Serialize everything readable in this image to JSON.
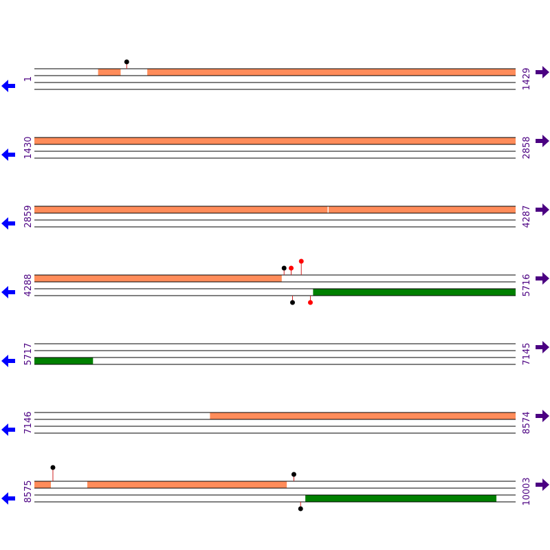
{
  "colors": {
    "line": "#000000",
    "orange_feature": "#ff8c5a",
    "green_feature": "#008000",
    "label": "#4b0082",
    "left_arrow": "#0000ff",
    "right_arrow": "#4b0082",
    "lollipop_black": "#000000",
    "lollipop_red": "#ff0000",
    "stem": "#d02020"
  },
  "icons": {
    "left": "arrow-left-icon",
    "right": "arrow-right-icon"
  },
  "rows": [
    {
      "start_label": "1",
      "end_label": "1429",
      "start": 1,
      "end": 1429,
      "features": [
        {
          "track": 0,
          "from": 190,
          "to": 257,
          "color": "orange"
        },
        {
          "track": 0,
          "from": 336,
          "to": 1429,
          "color": "orange"
        }
      ],
      "markers": [
        {
          "pos": 275,
          "side": "top",
          "level": 1,
          "color": "black"
        }
      ]
    },
    {
      "start_label": "1430",
      "end_label": "2858",
      "start": 1430,
      "end": 2858,
      "features": [
        {
          "track": 0,
          "from": 1430,
          "to": 2858,
          "color": "orange"
        }
      ],
      "markers": []
    },
    {
      "start_label": "2859",
      "end_label": "4287",
      "start": 2859,
      "end": 4287,
      "features": [
        {
          "track": 0,
          "from": 2859,
          "to": 3729,
          "color": "orange"
        },
        {
          "track": 0,
          "from": 3732,
          "to": 4287,
          "color": "orange"
        }
      ],
      "markers": []
    },
    {
      "start_label": "4288",
      "end_label": "5716",
      "start": 4288,
      "end": 5716,
      "features": [
        {
          "track": 0,
          "from": 4288,
          "to": 5022,
          "color": "orange"
        },
        {
          "track": 2,
          "from": 5115,
          "to": 5716,
          "color": "green"
        }
      ],
      "markers": [
        {
          "pos": 5029,
          "side": "top",
          "level": 1,
          "color": "black"
        },
        {
          "pos": 5050,
          "side": "top",
          "level": 1,
          "color": "red"
        },
        {
          "pos": 5080,
          "side": "top",
          "level": 2,
          "color": "red"
        },
        {
          "pos": 5054,
          "side": "bottom",
          "level": 1,
          "color": "black"
        },
        {
          "pos": 5107,
          "side": "bottom",
          "level": 1,
          "color": "red"
        }
      ]
    },
    {
      "start_label": "5717",
      "end_label": "7145",
      "start": 5717,
      "end": 7145,
      "features": [
        {
          "track": 2,
          "from": 5717,
          "to": 5891,
          "color": "green"
        }
      ],
      "markers": []
    },
    {
      "start_label": "7146",
      "end_label": "8574",
      "start": 7146,
      "end": 8574,
      "features": [
        {
          "track": 0,
          "from": 7667,
          "to": 8574,
          "color": "orange"
        }
      ],
      "markers": []
    },
    {
      "start_label": "8575",
      "end_label": "10003",
      "start": 8575,
      "end": 10003,
      "features": [
        {
          "track": 0,
          "from": 8575,
          "to": 8624,
          "color": "orange"
        },
        {
          "track": 0,
          "from": 8732,
          "to": 9324,
          "color": "orange"
        },
        {
          "track": 2,
          "from": 9379,
          "to": 9946,
          "color": "green"
        }
      ],
      "markers": [
        {
          "pos": 8630,
          "side": "top",
          "level": 2,
          "color": "black"
        },
        {
          "pos": 9345,
          "side": "top",
          "level": 1,
          "color": "black"
        },
        {
          "pos": 9365,
          "side": "bottom",
          "level": 1,
          "color": "black"
        }
      ]
    }
  ]
}
